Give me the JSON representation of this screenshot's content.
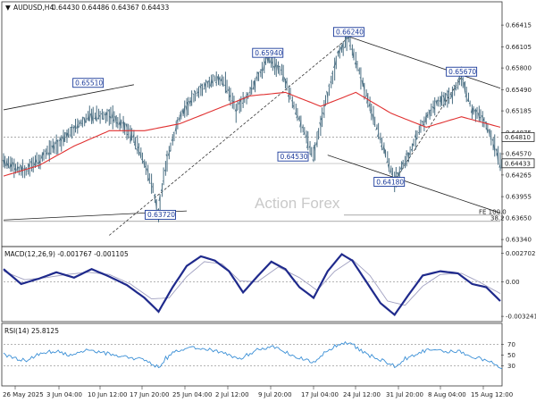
{
  "header": {
    "symbol": "AUDUSD,H4",
    "ohlc": "0.64430 0.64486 0.64367 0.64433"
  },
  "watermark": "Action Forex",
  "chart_data": [
    {
      "type": "line",
      "symbol": "AUDUSD,H4",
      "price_axis_ticks": [
        "0.66415",
        "0.66105",
        "0.65800",
        "0.65490",
        "0.65185",
        "0.64875",
        "0.64570",
        "0.64265",
        "0.63955",
        "0.63650",
        "0.63340"
      ],
      "ylim": [
        0.6329,
        0.6657
      ],
      "current_price": "0.64433",
      "fib_level_label": "0.64810",
      "x_tick_labels": [
        "26 May 2025",
        "3 Jun 04:00",
        "10 Jun 12:00",
        "17 Jun 20:00",
        "25 Jun 04:00",
        "2 Jul 12:00",
        "9 Jul 20:00",
        "17 Jul 04:00",
        "24 Jul 12:00",
        "31 Jul 20:00",
        "8 Aug 04:00",
        "15 Aug 12:00"
      ],
      "price_path": [
        {
          "i": 0,
          "v": 0.6445
        },
        {
          "i": 6,
          "v": 0.6432
        },
        {
          "i": 11,
          "v": 0.6452
        },
        {
          "i": 17,
          "v": 0.6478
        },
        {
          "i": 24,
          "v": 0.651
        },
        {
          "i": 30,
          "v": 0.6512
        },
        {
          "i": 34,
          "v": 0.65
        },
        {
          "i": 38,
          "v": 0.647
        },
        {
          "i": 42,
          "v": 0.6415
        },
        {
          "i": 44,
          "v": 0.6372
        },
        {
          "i": 46,
          "v": 0.644
        },
        {
          "i": 50,
          "v": 0.651
        },
        {
          "i": 55,
          "v": 0.6545
        },
        {
          "i": 60,
          "v": 0.6565
        },
        {
          "i": 63,
          "v": 0.656
        },
        {
          "i": 66,
          "v": 0.652
        },
        {
          "i": 70,
          "v": 0.6545
        },
        {
          "i": 75,
          "v": 0.6594
        },
        {
          "i": 79,
          "v": 0.6575
        },
        {
          "i": 83,
          "v": 0.652
        },
        {
          "i": 86,
          "v": 0.648
        },
        {
          "i": 88,
          "v": 0.6453
        },
        {
          "i": 91,
          "v": 0.652
        },
        {
          "i": 95,
          "v": 0.66
        },
        {
          "i": 98,
          "v": 0.6624
        },
        {
          "i": 101,
          "v": 0.6575
        },
        {
          "i": 105,
          "v": 0.651
        },
        {
          "i": 108,
          "v": 0.6465
        },
        {
          "i": 111,
          "v": 0.6418
        },
        {
          "i": 115,
          "v": 0.6455
        },
        {
          "i": 119,
          "v": 0.65
        },
        {
          "i": 123,
          "v": 0.653
        },
        {
          "i": 127,
          "v": 0.654
        },
        {
          "i": 130,
          "v": 0.6567
        },
        {
          "i": 133,
          "v": 0.652
        },
        {
          "i": 136,
          "v": 0.651
        },
        {
          "i": 139,
          "v": 0.6475
        },
        {
          "i": 141,
          "v": 0.6443
        }
      ],
      "moving_average": [
        {
          "i": 0,
          "v": 0.6425
        },
        {
          "i": 10,
          "v": 0.644
        },
        {
          "i": 20,
          "v": 0.6468
        },
        {
          "i": 30,
          "v": 0.649
        },
        {
          "i": 40,
          "v": 0.649
        },
        {
          "i": 50,
          "v": 0.65
        },
        {
          "i": 60,
          "v": 0.652
        },
        {
          "i": 70,
          "v": 0.654
        },
        {
          "i": 80,
          "v": 0.6545
        },
        {
          "i": 90,
          "v": 0.6525
        },
        {
          "i": 100,
          "v": 0.6545
        },
        {
          "i": 110,
          "v": 0.6515
        },
        {
          "i": 120,
          "v": 0.6495
        },
        {
          "i": 130,
          "v": 0.651
        },
        {
          "i": 141,
          "v": 0.6495
        }
      ],
      "swing_labels": [
        {
          "text": "0.65510",
          "i": 24,
          "v": 0.6551
        },
        {
          "text": "0.63720",
          "i": 44,
          "v": 0.6372
        },
        {
          "text": "0.65940",
          "i": 75,
          "v": 0.6594
        },
        {
          "text": "0.64530",
          "i": 88,
          "v": 0.6453
        },
        {
          "text": "0.66240",
          "i": 98,
          "v": 0.6624
        },
        {
          "text": "0.64180",
          "i": 111,
          "v": 0.6418
        },
        {
          "text": "0.65670",
          "i": 130,
          "v": 0.6567
        }
      ],
      "trendlines": [
        {
          "from": {
            "i": 0,
            "v": 0.652
          },
          "to": {
            "i": 37,
            "v": 0.6556
          },
          "style": "solid"
        },
        {
          "from": {
            "i": 0,
            "v": 0.6362
          },
          "to": {
            "i": 52,
            "v": 0.6375
          },
          "style": "solid"
        },
        {
          "from": {
            "i": 98,
            "v": 0.6625
          },
          "to": {
            "i": 141,
            "v": 0.6551
          },
          "style": "solid"
        },
        {
          "from": {
            "i": 92,
            "v": 0.6455
          },
          "to": {
            "i": 141,
            "v": 0.6372
          },
          "style": "solid"
        },
        {
          "from": {
            "i": 30,
            "v": 0.634
          },
          "to": {
            "i": 98,
            "v": 0.6624
          },
          "style": "dashed"
        },
        {
          "from": {
            "i": 111,
            "v": 0.6418
          },
          "to": {
            "i": 130,
            "v": 0.6567
          },
          "style": "dashed"
        }
      ],
      "horizontal_levels": [
        {
          "v": 0.6481,
          "label": "0.64810",
          "style": "dotted"
        },
        {
          "v": 0.6443,
          "label": "",
          "style": "thin"
        },
        {
          "v": 0.636,
          "label": "38.2",
          "style": "solid"
        },
        {
          "v": 0.6369,
          "label": "FE 100.0",
          "style": "solid"
        }
      ]
    },
    {
      "type": "line",
      "title": "MACD(12,26,9) -0.001767 -0.001105",
      "ticks": [
        "0.002702",
        "0.00",
        "-0.003241"
      ],
      "ylim": [
        -0.0034,
        0.0029
      ],
      "macd": [
        {
          "i": 0,
          "v": 0.0012
        },
        {
          "i": 5,
          "v": -0.0002
        },
        {
          "i": 10,
          "v": 0.0003
        },
        {
          "i": 15,
          "v": 0.0009
        },
        {
          "i": 20,
          "v": 0.0004
        },
        {
          "i": 25,
          "v": 0.0012
        },
        {
          "i": 30,
          "v": 0.0005
        },
        {
          "i": 35,
          "v": -0.0003
        },
        {
          "i": 40,
          "v": -0.0015
        },
        {
          "i": 44,
          "v": -0.0028
        },
        {
          "i": 48,
          "v": -0.0005
        },
        {
          "i": 52,
          "v": 0.0015
        },
        {
          "i": 56,
          "v": 0.0024
        },
        {
          "i": 60,
          "v": 0.002
        },
        {
          "i": 64,
          "v": 0.001
        },
        {
          "i": 68,
          "v": -0.001
        },
        {
          "i": 72,
          "v": 0.0005
        },
        {
          "i": 76,
          "v": 0.0019
        },
        {
          "i": 80,
          "v": 0.0012
        },
        {
          "i": 84,
          "v": -0.0005
        },
        {
          "i": 88,
          "v": -0.0015
        },
        {
          "i": 92,
          "v": 0.001
        },
        {
          "i": 96,
          "v": 0.0026
        },
        {
          "i": 99,
          "v": 0.002
        },
        {
          "i": 103,
          "v": 0.0
        },
        {
          "i": 107,
          "v": -0.002
        },
        {
          "i": 111,
          "v": -0.0031
        },
        {
          "i": 115,
          "v": -0.0012
        },
        {
          "i": 119,
          "v": 0.0006
        },
        {
          "i": 124,
          "v": 0.001
        },
        {
          "i": 129,
          "v": 0.0008
        },
        {
          "i": 133,
          "v": -0.0002
        },
        {
          "i": 137,
          "v": -0.0005
        },
        {
          "i": 141,
          "v": -0.0018
        }
      ],
      "signal": [
        {
          "i": 0,
          "v": 0.001
        },
        {
          "i": 6,
          "v": 0.0002
        },
        {
          "i": 12,
          "v": 0.0004
        },
        {
          "i": 18,
          "v": 0.0007
        },
        {
          "i": 24,
          "v": 0.0009
        },
        {
          "i": 30,
          "v": 0.0007
        },
        {
          "i": 36,
          "v": -0.0002
        },
        {
          "i": 42,
          "v": -0.0016
        },
        {
          "i": 47,
          "v": -0.0015
        },
        {
          "i": 52,
          "v": 0.0005
        },
        {
          "i": 57,
          "v": 0.0019
        },
        {
          "i": 62,
          "v": 0.0017
        },
        {
          "i": 67,
          "v": 0.0001
        },
        {
          "i": 72,
          "v": 0.0
        },
        {
          "i": 78,
          "v": 0.0014
        },
        {
          "i": 84,
          "v": 0.0004
        },
        {
          "i": 89,
          "v": -0.0008
        },
        {
          "i": 94,
          "v": 0.001
        },
        {
          "i": 99,
          "v": 0.0021
        },
        {
          "i": 104,
          "v": 0.0006
        },
        {
          "i": 109,
          "v": -0.0018
        },
        {
          "i": 114,
          "v": -0.0022
        },
        {
          "i": 119,
          "v": -0.0004
        },
        {
          "i": 124,
          "v": 0.0007
        },
        {
          "i": 130,
          "v": 0.0008
        },
        {
          "i": 135,
          "v": 0.0
        },
        {
          "i": 141,
          "v": -0.0011
        }
      ]
    },
    {
      "type": "line",
      "title": "RSI(14) 25.8125",
      "ticks": [
        "70",
        "50",
        "30"
      ],
      "ylim": [
        0,
        100
      ],
      "levels": [
        70,
        30
      ],
      "rsi": [
        {
          "i": 0,
          "v": 52
        },
        {
          "i": 3,
          "v": 44
        },
        {
          "i": 6,
          "v": 40
        },
        {
          "i": 9,
          "v": 50
        },
        {
          "i": 12,
          "v": 55
        },
        {
          "i": 15,
          "v": 58
        },
        {
          "i": 18,
          "v": 50
        },
        {
          "i": 21,
          "v": 56
        },
        {
          "i": 24,
          "v": 60
        },
        {
          "i": 27,
          "v": 55
        },
        {
          "i": 30,
          "v": 52
        },
        {
          "i": 33,
          "v": 48
        },
        {
          "i": 36,
          "v": 45
        },
        {
          "i": 39,
          "v": 42
        },
        {
          "i": 42,
          "v": 34
        },
        {
          "i": 44,
          "v": 28
        },
        {
          "i": 46,
          "v": 45
        },
        {
          "i": 49,
          "v": 58
        },
        {
          "i": 52,
          "v": 62
        },
        {
          "i": 55,
          "v": 64
        },
        {
          "i": 58,
          "v": 60
        },
        {
          "i": 61,
          "v": 56
        },
        {
          "i": 64,
          "v": 50
        },
        {
          "i": 67,
          "v": 42
        },
        {
          "i": 70,
          "v": 54
        },
        {
          "i": 73,
          "v": 62
        },
        {
          "i": 76,
          "v": 66
        },
        {
          "i": 79,
          "v": 58
        },
        {
          "i": 82,
          "v": 48
        },
        {
          "i": 85,
          "v": 42
        },
        {
          "i": 88,
          "v": 36
        },
        {
          "i": 91,
          "v": 55
        },
        {
          "i": 94,
          "v": 66
        },
        {
          "i": 97,
          "v": 72
        },
        {
          "i": 99,
          "v": 68
        },
        {
          "i": 102,
          "v": 55
        },
        {
          "i": 105,
          "v": 45
        },
        {
          "i": 108,
          "v": 38
        },
        {
          "i": 111,
          "v": 30
        },
        {
          "i": 114,
          "v": 44
        },
        {
          "i": 117,
          "v": 52
        },
        {
          "i": 120,
          "v": 60
        },
        {
          "i": 123,
          "v": 58
        },
        {
          "i": 126,
          "v": 56
        },
        {
          "i": 129,
          "v": 58
        },
        {
          "i": 132,
          "v": 48
        },
        {
          "i": 135,
          "v": 45
        },
        {
          "i": 138,
          "v": 36
        },
        {
          "i": 141,
          "v": 26
        }
      ]
    }
  ],
  "colors": {
    "price": "#4a6e82",
    "moving_average": "#e03030",
    "macd": "#1f2a8c",
    "signal": "#a0a0c0",
    "rsi": "#3a8fd6",
    "label_border": "#1a3a9a",
    "grid_dotted": "#888888"
  }
}
